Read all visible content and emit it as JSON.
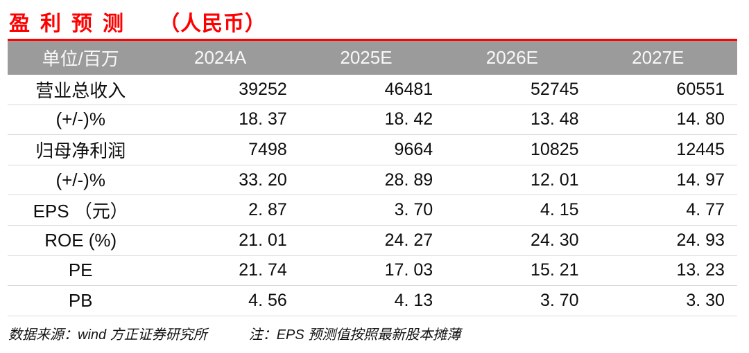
{
  "title": {
    "text": "盈利预测",
    "suffix": "（人民币）"
  },
  "colors": {
    "accent_red": "#fe0000",
    "header_bg": "#9b9b9b",
    "header_text": "#f8f8f8",
    "row_divider": "#d9d9d9",
    "body_text": "#0d0d0d"
  },
  "table": {
    "unit_header": "单位/百万",
    "columns": [
      "2024A",
      "2025E",
      "2026E",
      "2027E"
    ],
    "rows": [
      {
        "label": "营业总收入",
        "values": [
          "39252",
          "46481",
          "52745",
          "60551"
        ]
      },
      {
        "label": "(+/-)%",
        "values": [
          "18. 37",
          "18. 42",
          "13. 48",
          "14. 80"
        ]
      },
      {
        "label": "归母净利润",
        "values": [
          "7498",
          "9664",
          "10825",
          "12445"
        ]
      },
      {
        "label": "(+/-)%",
        "values": [
          "33. 20",
          "28. 89",
          "12. 01",
          "14. 97"
        ]
      },
      {
        "label": "EPS （元）",
        "values": [
          "2. 87",
          "3. 70",
          "4. 15",
          "4. 77"
        ]
      },
      {
        "label": "ROE (%)",
        "values": [
          "21. 01",
          "24. 27",
          "24. 30",
          "24. 93"
        ]
      },
      {
        "label": "PE",
        "values": [
          "21. 74",
          "17. 03",
          "15. 21",
          "13. 23"
        ]
      },
      {
        "label": "PB",
        "values": [
          "4. 56",
          "4. 13",
          "3. 70",
          "3. 30"
        ]
      }
    ]
  },
  "footer": {
    "source": "数据来源：wind 方正证券研究所",
    "note": "注：EPS 预测值按照最新股本摊薄"
  },
  "chart_data": {
    "type": "table",
    "title": "盈利预测（人民币）",
    "columns": [
      "单位/百万",
      "2024A",
      "2025E",
      "2026E",
      "2027E"
    ],
    "rows": [
      [
        "营业总收入",
        39252,
        46481,
        52745,
        60551
      ],
      [
        "(+/-)%",
        18.37,
        18.42,
        13.48,
        14.8
      ],
      [
        "归母净利润",
        7498,
        9664,
        10825,
        12445
      ],
      [
        "(+/-)%",
        33.2,
        28.89,
        12.01,
        14.97
      ],
      [
        "EPS（元）",
        2.87,
        3.7,
        4.15,
        4.77
      ],
      [
        "ROE(%)",
        21.01,
        24.27,
        24.3,
        24.93
      ],
      [
        "PE",
        21.74,
        17.03,
        15.21,
        13.23
      ],
      [
        "PB",
        4.56,
        4.13,
        3.7,
        3.3
      ]
    ]
  }
}
